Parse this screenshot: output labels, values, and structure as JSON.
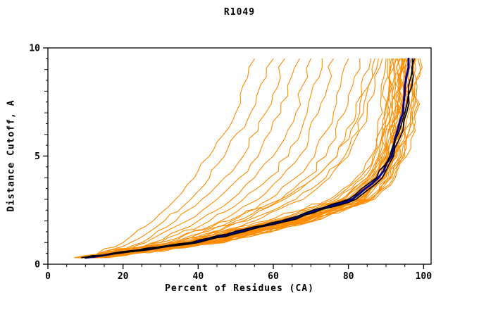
{
  "title": "R1049",
  "chart_data": {
    "type": "line",
    "title": "R1049",
    "xlabel": "Percent of Residues (CA)",
    "ylabel": "Distance Cutoff, A",
    "xlim": [
      0,
      102
    ],
    "ylim": [
      0,
      10
    ],
    "x_ticks": [
      0,
      20,
      40,
      60,
      80,
      100
    ],
    "y_ticks": [
      0,
      5,
      10
    ],
    "grid": false,
    "legend": "none",
    "frame_color": "#000000",
    "anchor_y": [
      0.3,
      1,
      2,
      3,
      4,
      5,
      7,
      9.5
    ],
    "series_groups": [
      {
        "name": "prediction-curves",
        "color": "#FF8C00",
        "width": 1.1,
        "jitter": 1.0,
        "curves": [
          [
            10,
            20,
            28,
            34,
            39,
            43,
            50,
            55
          ],
          [
            11,
            22,
            31,
            38,
            43,
            47,
            54,
            60
          ],
          [
            12,
            25,
            34,
            41,
            47,
            52,
            58,
            63
          ],
          [
            10,
            26,
            37,
            45,
            51,
            56,
            62,
            67
          ],
          [
            13,
            28,
            40,
            49,
            55,
            60,
            66,
            70
          ],
          [
            11,
            30,
            43,
            52,
            59,
            64,
            69,
            73
          ],
          [
            14,
            32,
            46,
            56,
            62,
            67,
            72,
            76
          ],
          [
            12,
            34,
            49,
            59,
            66,
            71,
            76,
            80
          ],
          [
            15,
            36,
            52,
            62,
            69,
            74,
            79,
            83
          ],
          [
            9,
            33,
            50,
            63,
            71,
            77,
            82,
            86
          ],
          [
            13,
            35,
            53,
            66,
            74,
            79,
            84,
            88
          ],
          [
            10,
            30,
            48,
            62,
            71,
            77,
            83,
            87
          ],
          [
            16,
            38,
            55,
            68,
            75,
            80,
            85,
            89
          ],
          [
            7,
            34,
            58,
            75,
            82,
            86,
            89,
            90
          ],
          [
            8,
            36,
            60,
            77,
            84,
            87,
            90,
            91
          ],
          [
            9,
            37,
            61,
            78,
            85,
            88,
            90.5,
            91.5
          ],
          [
            10,
            38,
            62,
            79,
            85.5,
            88.5,
            91,
            92
          ],
          [
            8,
            39,
            63,
            80,
            86,
            89,
            91.5,
            92.5
          ],
          [
            11,
            40,
            64,
            80.5,
            86.5,
            89.5,
            92,
            93
          ],
          [
            9,
            41,
            65,
            81,
            87,
            90,
            92.5,
            93.5
          ],
          [
            12,
            42,
            66,
            82,
            87.5,
            90.5,
            93,
            94
          ],
          [
            10,
            43,
            67,
            82.5,
            88,
            91,
            93.5,
            94.5
          ],
          [
            8,
            40,
            66,
            83,
            88.5,
            91.5,
            94,
            95
          ],
          [
            11,
            44,
            68,
            83.5,
            89,
            92,
            94.5,
            95.5
          ],
          [
            9,
            42,
            67,
            84,
            89.5,
            92.5,
            95,
            96
          ],
          [
            12,
            45,
            69,
            84.5,
            90,
            93,
            95.5,
            96.5
          ],
          [
            10,
            43,
            68,
            85,
            90.5,
            93.5,
            96,
            97
          ],
          [
            13,
            46,
            70,
            85.5,
            91,
            94,
            96.5,
            97.5
          ],
          [
            11,
            44,
            69,
            86,
            91.5,
            94.5,
            97,
            98
          ],
          [
            14,
            47,
            71,
            86.5,
            92,
            95,
            97.5,
            98.5
          ],
          [
            12,
            45,
            70,
            87,
            92.5,
            95.5,
            98,
            99
          ],
          [
            9,
            38,
            64,
            81.5,
            87,
            90.2,
            92.8,
            93.8
          ],
          [
            13,
            41,
            66,
            82,
            88,
            91,
            93.2,
            94.2
          ],
          [
            7.5,
            35,
            59,
            76,
            83,
            86.5,
            89.5,
            90.5
          ],
          [
            10,
            39,
            63,
            79.5,
            86,
            89,
            91.8,
            92.8
          ],
          [
            12,
            44,
            68.5,
            84,
            89.2,
            92.2,
            94.8,
            95.8
          ],
          [
            8.5,
            37,
            62,
            78.5,
            85,
            88.2,
            90.8,
            91.8
          ],
          [
            11,
            42,
            66.5,
            83,
            88.8,
            91.8,
            94.2,
            95.2
          ],
          [
            14,
            46,
            70.5,
            86,
            91.2,
            94.2,
            96.8,
            97.8
          ],
          [
            9.5,
            40,
            65,
            81,
            87.2,
            90.6,
            93.4,
            94.4
          ],
          [
            13,
            43,
            67.5,
            84.2,
            89.6,
            92.6,
            95.2,
            96.2
          ],
          [
            10.5,
            41,
            65.5,
            82.8,
            88.4,
            91.4,
            93.8,
            94.8
          ]
        ]
      },
      {
        "name": "reference-blue-curve",
        "color": "#00008B",
        "width": 3,
        "jitter": 0.35,
        "curves": [
          [
            10,
            39,
            63,
            81,
            88,
            91.5,
            94.5,
            96
          ]
        ]
      },
      {
        "name": "reference-black-curves",
        "color": "#000000",
        "width": 1.7,
        "jitter": 0.5,
        "curves": [
          [
            10,
            40,
            64,
            82,
            89,
            92,
            95.5,
            97.5
          ],
          [
            9,
            38,
            62,
            80,
            87.5,
            91,
            95,
            97
          ]
        ]
      }
    ]
  }
}
